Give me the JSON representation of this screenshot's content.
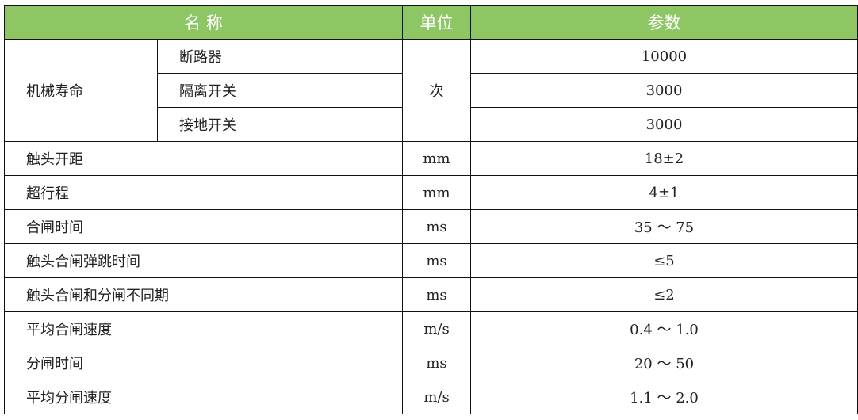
{
  "header": {
    "name": "名 称",
    "unit": "单位",
    "param": "参数",
    "color": "#8dc663"
  },
  "life": {
    "label": "机械寿命",
    "unit": "次",
    "items": [
      {
        "name": "断路器",
        "value": "10000"
      },
      {
        "name": "隔离开关",
        "value": "3000"
      },
      {
        "name": "接地开关",
        "value": "3000"
      }
    ]
  },
  "rows": [
    {
      "name": "触头开距",
      "unit": "mm",
      "value": "18±2"
    },
    {
      "name": "超行程",
      "unit": "mm",
      "value": "4±1"
    },
    {
      "name": "合闸时间",
      "unit": "ms",
      "value": "35 ～ 75"
    },
    {
      "name": "触头合闸弹跳时间",
      "unit": "ms",
      "value": "≤5"
    },
    {
      "name": "触头合闸和分闸不同期",
      "unit": "ms",
      "value": "≤2"
    },
    {
      "name": "平均合闸速度",
      "unit": "m/s",
      "value": "0.4 ～ 1.0"
    },
    {
      "name": "分闸时间",
      "unit": "ms",
      "value": "20 ～ 50"
    },
    {
      "name": "平均分闸速度",
      "unit": "m/s",
      "value": "1.1 ～ 2.0"
    }
  ]
}
